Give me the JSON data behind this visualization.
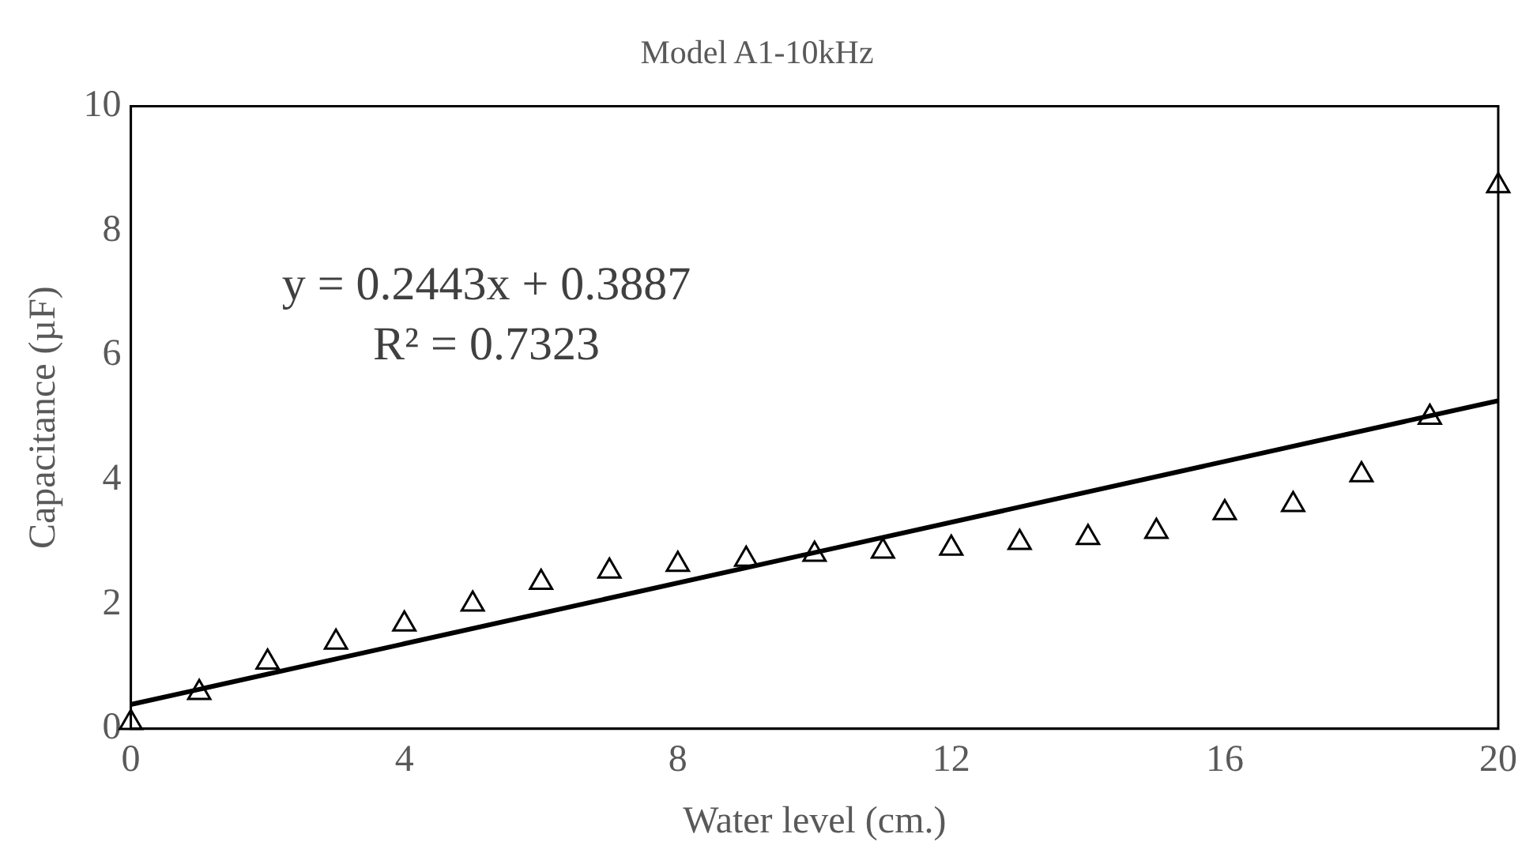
{
  "chart_data": {
    "type": "scatter",
    "title": "Model A1-10kHz",
    "xlabel": "Water level (cm.)",
    "ylabel": "Capacitance (µF)",
    "x": [
      0,
      1,
      2,
      3,
      4,
      5,
      6,
      7,
      8,
      9,
      10,
      11,
      12,
      13,
      14,
      15,
      16,
      17,
      18,
      19,
      20
    ],
    "series": [
      {
        "type": "scatter",
        "color": "#000000",
        "marker": "triangle",
        "values": [
          0.1,
          0.58,
          1.07,
          1.39,
          1.68,
          2.0,
          2.35,
          2.53,
          2.64,
          2.72,
          2.8,
          2.85,
          2.9,
          2.99,
          3.07,
          3.17,
          3.47,
          3.6,
          4.08,
          5.0,
          8.72
        ]
      },
      {
        "type": "line",
        "color": "#000000",
        "marker": "none",
        "x": [
          0,
          20
        ],
        "values": [
          0.39,
          5.27
        ]
      }
    ],
    "xlim": [
      0,
      20
    ],
    "xticks": [
      0,
      4,
      8,
      12,
      16,
      20
    ],
    "ylim": [
      0,
      10
    ],
    "yticks": [
      0,
      2,
      4,
      6,
      8,
      10
    ],
    "grid": false,
    "legend": false,
    "annotations": [
      "y = 0.2443x + 0.3887",
      "R² = 0.7323"
    ]
  }
}
